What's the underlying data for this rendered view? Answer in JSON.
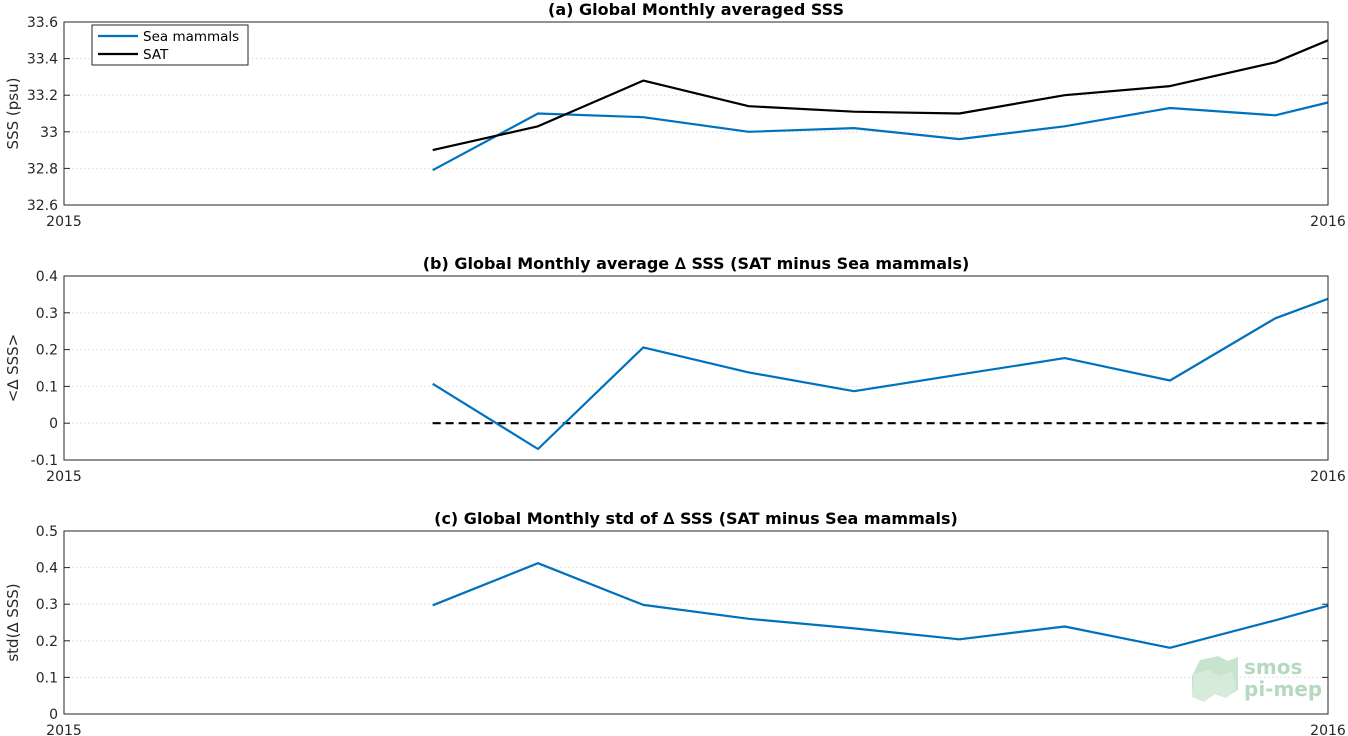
{
  "chart_data": [
    {
      "type": "line",
      "title": "(a) Global Monthly averaged SSS",
      "ylabel": "SSS (psu)",
      "xlabel": "",
      "x": [
        3.5,
        4.5,
        5.5,
        6.5,
        7.5,
        8.5,
        9.5,
        10.5,
        11.5,
        12
      ],
      "x_tick_labels": [
        "2015",
        "2016"
      ],
      "xlim": [
        0,
        12
      ],
      "ylim": [
        32.6,
        33.6
      ],
      "y_ticks": [
        32.6,
        32.8,
        33,
        33.2,
        33.4,
        33.6
      ],
      "y_tick_labels": [
        "32.6",
        "32.8",
        "33",
        "33.2",
        "33.4",
        "33.6"
      ],
      "grid": true,
      "legend": "top-left",
      "series": [
        {
          "name": "Sea mammals",
          "color": "#0072BD",
          "values": [
            32.79,
            33.1,
            33.08,
            33.0,
            33.02,
            32.96,
            33.03,
            33.13,
            33.09,
            33.16
          ]
        },
        {
          "name": "SAT",
          "color": "#000000",
          "values": [
            32.9,
            33.03,
            33.28,
            33.14,
            33.11,
            33.1,
            33.2,
            33.25,
            33.38,
            33.5
          ]
        }
      ]
    },
    {
      "type": "line",
      "title": "(b) Global Monthly average ∆ SSS (SAT minus Sea mammals)",
      "ylabel": "<∆ SSS>",
      "xlabel": "",
      "x": [
        3.5,
        4.5,
        5.5,
        6.5,
        7.5,
        8.5,
        9.5,
        10.5,
        11.5,
        12
      ],
      "x_tick_labels": [
        "2015",
        "2016"
      ],
      "xlim": [
        0,
        12
      ],
      "ylim": [
        -0.1,
        0.4
      ],
      "y_ticks": [
        -0.1,
        0,
        0.1,
        0.2,
        0.3,
        0.4
      ],
      "y_tick_labels": [
        "-0.1",
        "0",
        "0.1",
        "0.2",
        "0.3",
        "0.4"
      ],
      "grid": true,
      "reference_line": {
        "y": 0,
        "style": "dashed",
        "color": "#000000",
        "x_from": 3.5
      },
      "series": [
        {
          "color": "#0072BD",
          "values": [
            0.107,
            -0.07,
            0.206,
            0.138,
            0.087,
            0.132,
            0.177,
            0.116,
            0.285,
            0.338
          ]
        }
      ]
    },
    {
      "type": "line",
      "title": "(c) Global Monthly std of ∆ SSS (SAT minus Sea mammals)",
      "ylabel": "std(∆ SSS)",
      "xlabel": "",
      "x": [
        3.5,
        4.5,
        5.5,
        6.5,
        7.5,
        8.5,
        9.5,
        10.5,
        11.5,
        12
      ],
      "x_tick_labels": [
        "2015",
        "2016"
      ],
      "xlim": [
        0,
        12
      ],
      "ylim": [
        0,
        0.5
      ],
      "y_ticks": [
        0,
        0.1,
        0.2,
        0.3,
        0.4,
        0.5
      ],
      "y_tick_labels": [
        "0",
        "0.1",
        "0.2",
        "0.3",
        "0.4",
        "0.5"
      ],
      "grid": true,
      "series": [
        {
          "color": "#0072BD",
          "values": [
            0.297,
            0.412,
            0.298,
            0.26,
            0.234,
            0.204,
            0.239,
            0.181,
            0.256,
            0.296
          ]
        }
      ]
    }
  ],
  "logo": {
    "line1": "smos",
    "line2": "pi-mep",
    "color": "#a9d3b4"
  }
}
